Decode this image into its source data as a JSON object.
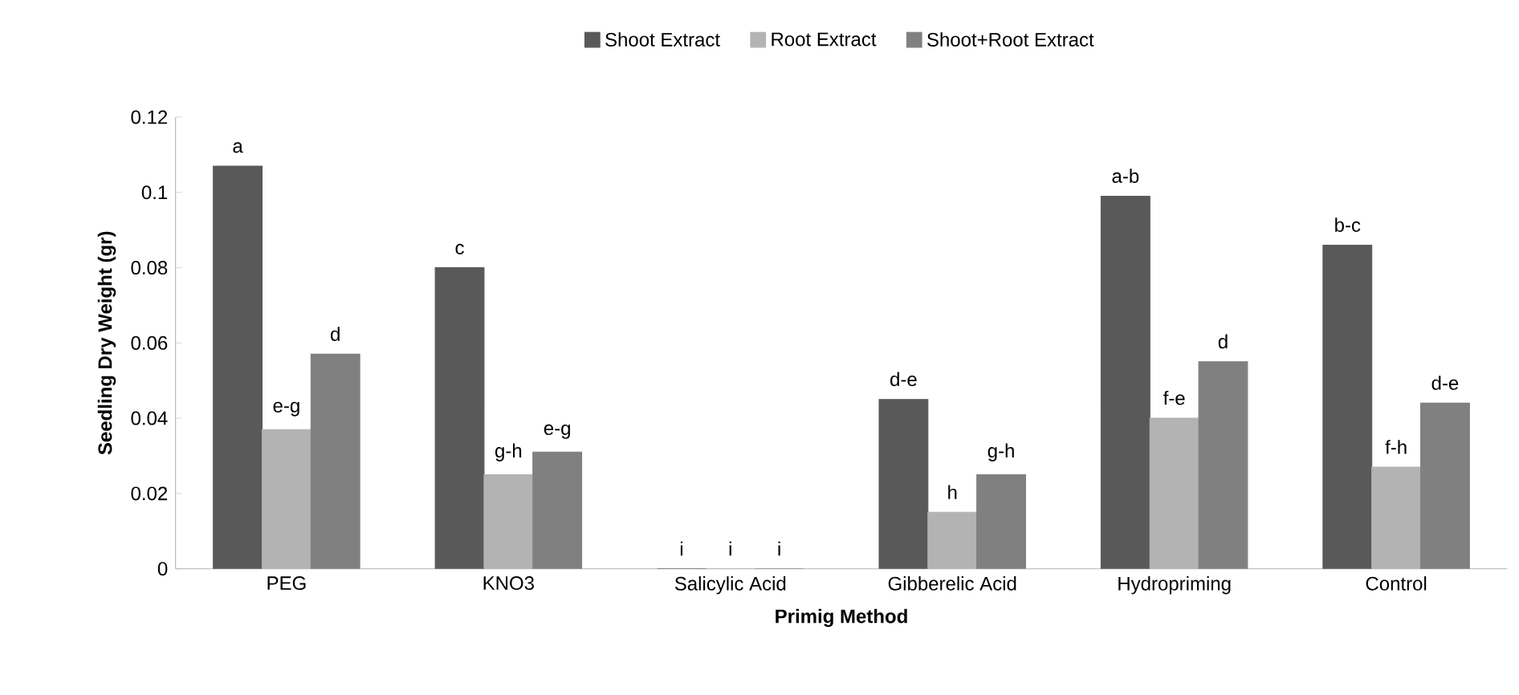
{
  "chart_data": {
    "type": "bar",
    "xlabel": "Primig Method",
    "ylabel": "Seedling Dry Weight (gr)",
    "categories": [
      "PEG",
      "KNO3",
      "Salicylic Acid",
      "Gibberelic Acid",
      "Hydropriming",
      "Control"
    ],
    "series": [
      {
        "name": "Shoot Extract",
        "color": "#595959",
        "values": [
          0.107,
          0.08,
          0,
          0.045,
          0.099,
          0.086
        ]
      },
      {
        "name": "Root Extract",
        "color": "#b3b3b3",
        "values": [
          0.037,
          0.025,
          0,
          0.015,
          0.04,
          0.027
        ]
      },
      {
        "name": "Shoot+Root Extract",
        "color": "#808080",
        "values": [
          0.057,
          0.031,
          0,
          0.025,
          0.055,
          0.044
        ]
      }
    ],
    "ylim": [
      0,
      0.12
    ],
    "yticks": [
      0,
      0.02,
      0.04,
      0.06,
      0.08,
      0.1,
      0.12
    ],
    "grid": false,
    "legend": "top",
    "annotations": [
      "a",
      "e-g",
      "d",
      "c",
      "g-h",
      "e-g",
      "i",
      "i",
      "i",
      "d-e",
      "h",
      "g-h",
      "a-b",
      "f-e",
      "d",
      "b-c",
      "f-h",
      "d-e"
    ]
  }
}
